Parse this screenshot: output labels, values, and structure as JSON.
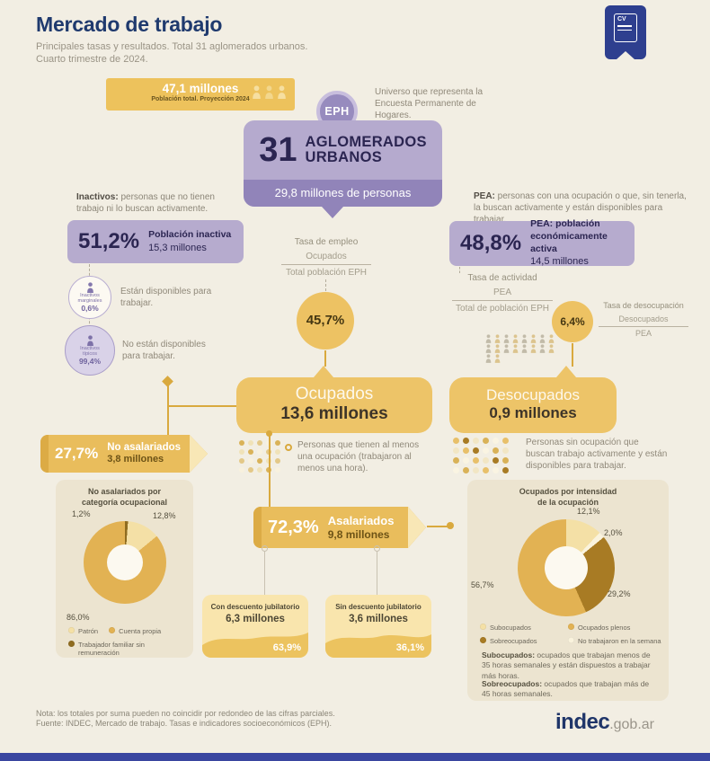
{
  "colors": {
    "accent_gold": "#edc263",
    "accent_gold_dark": "#d9a93e",
    "accent_purple": "#b6abce",
    "accent_purple_dark": "#9184b9",
    "navy": "#1f3a6e",
    "bottom_bar_blue": "#3a46a0",
    "panel_beige": "#ece4d0"
  },
  "header": {
    "title": "Mercado de trabajo",
    "subtitle1": "Principales tasas y resultados. Total 31 aglomerados urbanos.",
    "subtitle2": "Cuarto trimestre de 2024.",
    "cv_label": "CV"
  },
  "banner": {
    "value": "47,1 millones",
    "label": "Población total. Proyección 2024"
  },
  "eph": {
    "badge": "EPH",
    "note": "Universo que representa la Encuesta Permanente de Hogares.",
    "number": "31",
    "name1": "AGLOMERADOS",
    "name2": "URBANOS",
    "people": "29,8 millones de personas"
  },
  "inactivos": {
    "def_bold": "Inactivos:",
    "def_rest": " personas que no tienen trabajo ni lo buscan activamente.",
    "rate": "51,2%",
    "label": "Población inactiva",
    "amount": "15,3 millones",
    "marginales_l1": "Inactivos",
    "marginales_l2": "marginales",
    "marginales_v": "0,6%",
    "marginales_note": "Están disponibles para trabajar.",
    "tipicos_l1": "Inactivos",
    "tipicos_l2": "típicos",
    "tipicos_v": "99,4%",
    "tipicos_note": "No están disponibles para trabajar."
  },
  "pea": {
    "def_bold": "PEA:",
    "def_rest": " personas con una ocupación o que, sin tenerla, la buscan activamente y están disponibles para trabajar.",
    "rate": "48,8%",
    "label1": "PEA: población",
    "label2": "económicamente activa",
    "amount": "14,5 millones"
  },
  "tasas": {
    "empleo_title": "Tasa de empleo",
    "empleo_num": "Ocupados",
    "empleo_den": "Total población EPH",
    "empleo_valor": "45,7%",
    "actividad_title": "Tasa de actividad",
    "actividad_num": "PEA",
    "actividad_den": "Total de población EPH",
    "desocupacion_valor": "6,4%",
    "desocupacion_title": "Tasa de desocupación",
    "desocupacion_num": "Desocupados",
    "desocupacion_den": "PEA"
  },
  "ocupados": {
    "label": "Ocupados",
    "amount": "13,6 millones",
    "note": "Personas que tienen al menos una ocupación (trabajaron al menos una hora)."
  },
  "desocupados": {
    "label": "Desocupados",
    "amount": "0,9 millones",
    "note": "Personas sin ocupación que buscan trabajo activamente y están disponibles para trabajar."
  },
  "no_asalariados": {
    "rate": "27,7%",
    "label": "No asalariados",
    "amount": "3,8 millones",
    "panel_title1": "No asalariados por",
    "panel_title2": "categoría ocupacional",
    "callout_trabajador": "1,2%",
    "callout_patron": "12,8%",
    "callout_cuenta": "86,0%",
    "legend": [
      {
        "label": "Patrón",
        "color": "#f4e0a6"
      },
      {
        "label": "Cuenta propia",
        "color": "#e2b253"
      },
      {
        "label": "Trabajador familiar sin remuneración",
        "color": "#8f6c20"
      }
    ],
    "donut": {
      "slices": [
        {
          "label": "Trabajador familiar sin remuneración",
          "value": 1.2,
          "color": "#8f6c20"
        },
        {
          "label": "Patrón",
          "value": 12.8,
          "color": "#f4e0a6"
        },
        {
          "label": "Cuenta propia",
          "value": 86.0,
          "color": "#e2b253"
        }
      ]
    }
  },
  "asalariados": {
    "rate": "72,3%",
    "label": "Asalariados",
    "amount": "9,8 millones",
    "con_label": "Con descuento jubilatorio",
    "con_amount": "6,3 millones",
    "con_pct": "63,9%",
    "sin_label": "Sin descuento jubilatorio",
    "sin_amount": "3,6 millones",
    "sin_pct": "36,1%"
  },
  "intensidad": {
    "panel_title1": "Ocupados por intensidad",
    "panel_title2": "de la ocupación",
    "callout_subocupados": "12,1%",
    "callout_no_trabajaron": "2,0%",
    "callout_sobreocupados": "29,2%",
    "callout_plenos": "56,7%",
    "legend": [
      {
        "label": "Subocupados",
        "color": "#f4e0a6"
      },
      {
        "label": "Ocupados plenos",
        "color": "#e2b253"
      },
      {
        "label": "Sobreocupados",
        "color": "#a87b24"
      },
      {
        "label": "No trabajaron en la semana",
        "color": "#faf3dd"
      }
    ],
    "donut": {
      "slices": [
        {
          "label": "Subocupados",
          "value": 12.1,
          "color": "#f4e0a6"
        },
        {
          "label": "No trabajaron en la semana",
          "value": 2.0,
          "color": "#faf3dd"
        },
        {
          "label": "Sobreocupados",
          "value": 29.2,
          "color": "#a87b24"
        },
        {
          "label": "Ocupados plenos",
          "value": 56.7,
          "color": "#e2b253"
        }
      ]
    },
    "note1_bold": "Subocupados:",
    "note1_rest": " ocupados que trabajan menos de 35 horas semanales y están dispuestos a trabajar más horas.",
    "note2_bold": "Sobreocupados:",
    "note2_rest": " ocupados que trabajan más de 45 horas semanales."
  },
  "footer": {
    "nota": "Nota: los totales por suma pueden no coincidir por redondeo de las cifras parciales.",
    "fuente": "Fuente: INDEC, Mercado de trabajo. Tasas e indicadores socioeconómicos (EPH).",
    "brand_bold": "indec",
    "brand_rest": ".gob.ar"
  },
  "decor": {
    "banner_persons": {
      "colors": [
        "#f6dfa0",
        "#f3d78c",
        "#f6dfa0"
      ]
    },
    "pea_persons": {
      "colors": [
        "#c2bba9",
        "#dcc48e",
        "#c2bba9",
        "#dcc48e",
        "#c2bba9",
        "#dcc48e",
        "#c2bba9",
        "#dcc48e",
        "#c2bba9",
        "#dcc48e",
        "#c2bba9",
        "#dcc48e",
        "#c2bba9",
        "#dcc48e",
        "#c2bba9",
        "#dcc48e",
        "#c2bba9",
        "#dcc48e"
      ]
    },
    "ocupados_dots": {
      "colors": [
        "#d9b258",
        "#f0e2b8",
        "#e3c887",
        "#f8f1de",
        "#d9b258",
        "#f0e2b8",
        "#d9b258",
        "#f8f1de",
        "#e3c887",
        "#f0e2b8",
        "#e3c887",
        "#f8f1de",
        "#d9b258",
        "#f0e2b8",
        "#e3c887",
        "#f8f1de",
        "#e3c887",
        "#f0e2b8",
        "#d9b258",
        "#f8f1de"
      ]
    },
    "desocupados_dots": {
      "colors": [
        "#e8c06a",
        "#a87b24",
        "#f2e6c4",
        "#d9b258",
        "#faf4e2",
        "#e8c06a",
        "#f2e6c4",
        "#e8c06a",
        "#a87b24",
        "#faf4e2",
        "#d9b258",
        "#f2e6c4",
        "#d9b258",
        "#faf4e2",
        "#e8c06a",
        "#f2e6c4",
        "#a87b24",
        "#d9b258",
        "#faf4e2",
        "#d9b258",
        "#f2e6c4",
        "#e8c06a",
        "#faf4e2",
        "#a87b24"
      ]
    }
  },
  "chart_data": [
    {
      "type": "pie",
      "title": "No asalariados por categoría ocupacional",
      "labels": [
        "Trabajador familiar sin remuneración",
        "Patrón",
        "Cuenta propia"
      ],
      "values": [
        1.2,
        12.8,
        86.0
      ],
      "unit": "%",
      "legend_position": "bottom"
    },
    {
      "type": "pie",
      "title": "Ocupados por intensidad de la ocupación",
      "labels": [
        "Subocupados",
        "No trabajaron en la semana",
        "Sobreocupados",
        "Ocupados plenos"
      ],
      "values": [
        12.1,
        2.0,
        29.2,
        56.7
      ],
      "unit": "%",
      "legend_position": "bottom"
    }
  ]
}
